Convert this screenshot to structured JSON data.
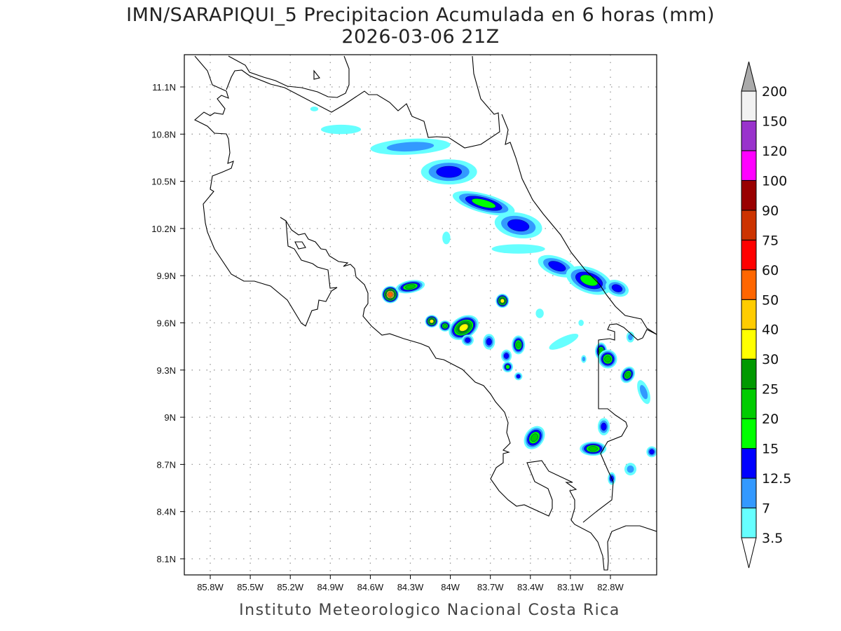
{
  "title": "IMN/SARAPIQUI_5 Precipitacion Acumulada en 6 horas (mm)",
  "subtitle": "2026-03-06 21Z",
  "footer": "Instituto Meteorologico Nacional Costa Rica",
  "axes": {
    "lon_ticks": [
      {
        "v": -85.8,
        "label": "85.8W"
      },
      {
        "v": -85.5,
        "label": "85.5W"
      },
      {
        "v": -85.2,
        "label": "85.2W"
      },
      {
        "v": -84.9,
        "label": "84.9W"
      },
      {
        "v": -84.6,
        "label": "84.6W"
      },
      {
        "v": -84.3,
        "label": "84.3W"
      },
      {
        "v": -84.0,
        "label": "84W"
      },
      {
        "v": -83.7,
        "label": "83.7W"
      },
      {
        "v": -83.4,
        "label": "83.4W"
      },
      {
        "v": -83.1,
        "label": "83.1W"
      },
      {
        "v": -82.8,
        "label": "82.8W"
      }
    ],
    "lat_ticks": [
      {
        "v": 11.1,
        "label": "11.1N"
      },
      {
        "v": 10.8,
        "label": "10.8N"
      },
      {
        "v": 10.5,
        "label": "10.5N"
      },
      {
        "v": 10.2,
        "label": "10.2N"
      },
      {
        "v": 9.9,
        "label": "9.9N"
      },
      {
        "v": 9.6,
        "label": "9.6N"
      },
      {
        "v": 9.3,
        "label": "9.3N"
      },
      {
        "v": 9.0,
        "label": "9N"
      },
      {
        "v": 8.7,
        "label": "8.7N"
      },
      {
        "v": 8.4,
        "label": "8.4N"
      },
      {
        "v": 8.1,
        "label": "8.1N"
      }
    ]
  },
  "colorbar": {
    "labels": [
      "3.5",
      "7",
      "12.5",
      "15",
      "20",
      "25",
      "30",
      "40",
      "50",
      "60",
      "75",
      "90",
      "100",
      "120",
      "150",
      "200"
    ],
    "colors": [
      "#66ffff",
      "#3399ff",
      "#0000ff",
      "#00ff00",
      "#00cc00",
      "#009900",
      "#ffff00",
      "#ffcc00",
      "#ff6600",
      "#ff0000",
      "#cc3300",
      "#990000",
      "#ff00ff",
      "#9933cc",
      "#f2f2f2"
    ],
    "under_color": "#ffffff",
    "over_color": "#aaaaaa"
  },
  "precip_cells": [
    {
      "lon": -84.82,
      "lat": 10.83,
      "rx": 0.15,
      "ry": 0.03,
      "rot": 0,
      "max": 0
    },
    {
      "lon": -84.3,
      "lat": 10.72,
      "rx": 0.3,
      "ry": 0.05,
      "rot": -3,
      "max": 1
    },
    {
      "lon": -84.01,
      "lat": 10.56,
      "rx": 0.21,
      "ry": 0.08,
      "rot": 0,
      "max": 2
    },
    {
      "lon": -83.75,
      "lat": 10.36,
      "rx": 0.24,
      "ry": 0.06,
      "rot": 15,
      "max": 3
    },
    {
      "lon": -83.49,
      "lat": 10.22,
      "rx": 0.18,
      "ry": 0.08,
      "rot": 10,
      "max": 2
    },
    {
      "lon": -83.49,
      "lat": 10.07,
      "rx": 0.2,
      "ry": 0.03,
      "rot": 0,
      "max": 0
    },
    {
      "lon": -83.2,
      "lat": 9.96,
      "rx": 0.15,
      "ry": 0.06,
      "rot": 20,
      "max": 2
    },
    {
      "lon": -82.96,
      "lat": 9.87,
      "rx": 0.18,
      "ry": 0.08,
      "rot": 20,
      "max": 3
    },
    {
      "lon": -82.75,
      "lat": 9.82,
      "rx": 0.09,
      "ry": 0.05,
      "rot": 20,
      "max": 2
    },
    {
      "lon": -84.45,
      "lat": 9.78,
      "rx": 0.065,
      "ry": 0.055,
      "rot": 0,
      "max": 8
    },
    {
      "lon": -84.3,
      "lat": 9.83,
      "rx": 0.11,
      "ry": 0.04,
      "rot": -10,
      "max": 4
    },
    {
      "lon": -84.14,
      "lat": 9.61,
      "rx": 0.05,
      "ry": 0.04,
      "rot": 0,
      "max": 6
    },
    {
      "lon": -84.04,
      "lat": 9.58,
      "rx": 0.045,
      "ry": 0.035,
      "rot": 0,
      "max": 4
    },
    {
      "lon": -83.9,
      "lat": 9.57,
      "rx": 0.12,
      "ry": 0.07,
      "rot": -30,
      "max": 6
    },
    {
      "lon": -83.87,
      "lat": 9.49,
      "rx": 0.045,
      "ry": 0.035,
      "rot": 0,
      "max": 2
    },
    {
      "lon": -83.61,
      "lat": 9.74,
      "rx": 0.05,
      "ry": 0.045,
      "rot": 0,
      "max": 6
    },
    {
      "lon": -83.71,
      "lat": 9.48,
      "rx": 0.045,
      "ry": 0.05,
      "rot": 0,
      "max": 2
    },
    {
      "lon": -83.49,
      "lat": 9.46,
      "rx": 0.05,
      "ry": 0.06,
      "rot": 0,
      "max": 4
    },
    {
      "lon": -83.58,
      "lat": 9.39,
      "rx": 0.04,
      "ry": 0.04,
      "rot": 0,
      "max": 2
    },
    {
      "lon": -83.57,
      "lat": 9.32,
      "rx": 0.04,
      "ry": 0.035,
      "rot": 0,
      "max": 3
    },
    {
      "lon": -83.49,
      "lat": 9.26,
      "rx": 0.03,
      "ry": 0.025,
      "rot": 0,
      "max": 2
    },
    {
      "lon": -82.87,
      "lat": 9.42,
      "rx": 0.045,
      "ry": 0.055,
      "rot": 0,
      "max": 4
    },
    {
      "lon": -82.82,
      "lat": 9.37,
      "rx": 0.07,
      "ry": 0.06,
      "rot": -40,
      "max": 4
    },
    {
      "lon": -82.67,
      "lat": 9.27,
      "rx": 0.05,
      "ry": 0.055,
      "rot": 30,
      "max": 4
    },
    {
      "lon": -82.55,
      "lat": 9.16,
      "rx": 0.04,
      "ry": 0.08,
      "rot": -20,
      "max": 1
    },
    {
      "lon": -83.37,
      "lat": 8.87,
      "rx": 0.07,
      "ry": 0.08,
      "rot": 35,
      "max": 4
    },
    {
      "lon": -82.93,
      "lat": 8.8,
      "rx": 0.1,
      "ry": 0.045,
      "rot": 0,
      "max": 4
    },
    {
      "lon": -82.85,
      "lat": 8.94,
      "rx": 0.045,
      "ry": 0.055,
      "rot": 0,
      "max": 2
    },
    {
      "lon": -82.79,
      "lat": 8.61,
      "rx": 0.03,
      "ry": 0.04,
      "rot": 0,
      "max": 2
    },
    {
      "lon": -82.65,
      "lat": 8.67,
      "rx": 0.045,
      "ry": 0.04,
      "rot": 0,
      "max": 1
    },
    {
      "lon": -82.49,
      "lat": 8.78,
      "rx": 0.04,
      "ry": 0.035,
      "rot": 0,
      "max": 2
    },
    {
      "lon": -83.15,
      "lat": 9.48,
      "rx": 0.12,
      "ry": 0.03,
      "rot": -25,
      "max": 0
    },
    {
      "lon": -83.33,
      "lat": 9.66,
      "rx": 0.03,
      "ry": 0.03,
      "rot": 0,
      "max": 0
    },
    {
      "lon": -83.02,
      "lat": 9.6,
      "rx": 0.02,
      "ry": 0.02,
      "rot": 0,
      "max": 0
    },
    {
      "lon": -84.03,
      "lat": 10.14,
      "rx": 0.03,
      "ry": 0.04,
      "rot": 0,
      "max": 0
    },
    {
      "lon": -85.02,
      "lat": 10.96,
      "rx": 0.03,
      "ry": 0.015,
      "rot": 0,
      "max": 0
    },
    {
      "lon": -83.0,
      "lat": 9.37,
      "rx": 0.02,
      "ry": 0.025,
      "rot": 0,
      "max": 1
    },
    {
      "lon": -82.65,
      "lat": 9.51,
      "rx": 0.03,
      "ry": 0.035,
      "rot": 0,
      "max": 1
    }
  ]
}
